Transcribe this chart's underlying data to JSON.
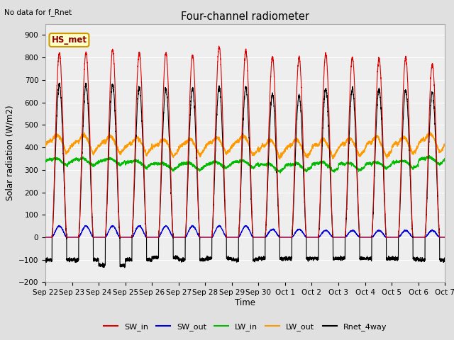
{
  "title": "Four-channel radiometer",
  "top_left_text": "No data for f_Rnet",
  "station_label": "HS_met",
  "ylabel": "Solar radiation (W/m2)",
  "xlabel": "Time",
  "ylim": [
    -200,
    950
  ],
  "yticks": [
    -200,
    -100,
    0,
    100,
    200,
    300,
    400,
    500,
    600,
    700,
    800,
    900
  ],
  "xtick_labels": [
    "Sep 22",
    "Sep 23",
    "Sep 24",
    "Sep 25",
    "Sep 26",
    "Sep 27",
    "Sep 28",
    "Sep 29",
    "Sep 30",
    "Oct 1",
    "Oct 2",
    "Oct 3",
    "Oct 4",
    "Oct 5",
    "Oct 6",
    "Oct 7"
  ],
  "legend_entries": [
    "SW_in",
    "SW_out",
    "LW_in",
    "LW_out",
    "Rnet_4way"
  ],
  "legend_colors": [
    "#dd0000",
    "#0000dd",
    "#00bb00",
    "#ff9900",
    "#000000"
  ],
  "bg_color": "#e0e0e0",
  "plot_bg_color": "#eeeeee",
  "grid_color": "#ffffff",
  "n_days": 15,
  "sw_in_peak": [
    820,
    820,
    835,
    820,
    820,
    810,
    845,
    830,
    800,
    800,
    815,
    800,
    795,
    800,
    770
  ],
  "sw_out_peak": [
    50,
    50,
    50,
    50,
    50,
    50,
    50,
    50,
    35,
    35,
    30,
    30,
    30,
    30,
    30
  ],
  "lw_in_mean": [
    330,
    330,
    330,
    320,
    310,
    310,
    315,
    320,
    305,
    308,
    310,
    310,
    315,
    320,
    335
  ],
  "lw_out_mean": [
    400,
    398,
    395,
    390,
    382,
    385,
    392,
    392,
    378,
    380,
    382,
    385,
    388,
    392,
    405
  ],
  "rnet_peak": [
    680,
    680,
    680,
    665,
    660,
    660,
    670,
    665,
    635,
    630,
    660,
    660,
    660,
    655,
    645
  ],
  "rnet_night": [
    -100,
    -100,
    -125,
    -100,
    -90,
    -100,
    -95,
    -100,
    -95,
    -95,
    -95,
    -95,
    -95,
    -95,
    -100
  ],
  "figsize": [
    6.4,
    4.8
  ],
  "dpi": 100
}
